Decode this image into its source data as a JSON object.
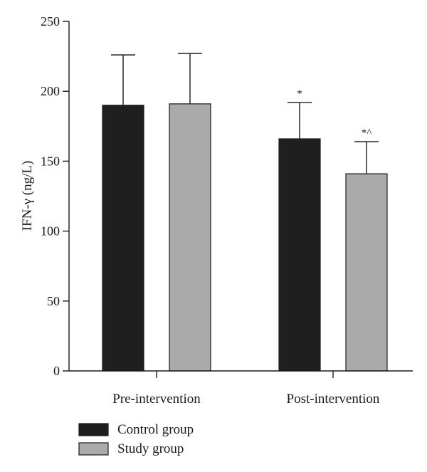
{
  "chart_data": {
    "type": "bar",
    "title": "",
    "xlabel": "",
    "ylabel": "IFN-γ (ng/L)",
    "ylim": [
      0,
      250
    ],
    "yticks": [
      0,
      50,
      100,
      150,
      200,
      250
    ],
    "categories": [
      "Pre-intervention",
      "Post-intervention"
    ],
    "series": [
      {
        "name": "Control group",
        "color": "#1f1f1f",
        "values": [
          190,
          166
        ],
        "errors": [
          36,
          26
        ],
        "annotations": [
          "",
          "*"
        ]
      },
      {
        "name": "Study group",
        "color": "#aaaaaa",
        "values": [
          191,
          141
        ],
        "errors": [
          36,
          23
        ],
        "annotations": [
          "",
          "*^"
        ]
      }
    ],
    "error_bars": "upper",
    "grid": false,
    "legend": "bottom-left"
  }
}
